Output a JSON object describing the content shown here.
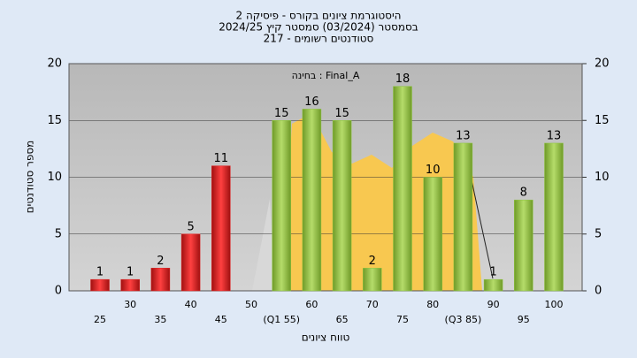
{
  "chart_data": {
    "type": "bar",
    "title": "היסטוגרמת ציונים בקורס - פיסיקה 2",
    "subtitle": "בסמסטר  (03/2024)  סמסטר קיץ  2024/25",
    "subtitle2": "סטודנטים רשומים - 217",
    "annotation": "בחינה : Final_A",
    "ylabel": "מספר סטודנטים",
    "xlabel": "טווח ציונים",
    "categories": [
      "25",
      "30",
      "35",
      "40",
      "45",
      "50",
      "(Q1 55)",
      "60",
      "65",
      "70",
      "75",
      "80",
      "(Q3 85)",
      "90",
      "95",
      "100"
    ],
    "values": [
      1,
      1,
      2,
      5,
      11,
      null,
      15,
      16,
      15,
      2,
      18,
      10,
      13,
      1,
      8,
      13
    ],
    "colors": [
      "#e02020",
      "#e02020",
      "#e02020",
      "#e02020",
      "#e02020",
      "#e02020",
      "#8dc63f",
      "#8dc63f",
      "#8dc63f",
      "#8dc63f",
      "#8dc63f",
      "#8dc63f",
      "#8dc63f",
      "#8dc63f",
      "#8dc63f",
      "#8dc63f"
    ],
    "ylim": [
      0,
      20
    ],
    "yticks": [
      0,
      5,
      10,
      15,
      20
    ],
    "y2lim": [
      0,
      20
    ],
    "y2ticks": [
      0,
      5,
      10,
      15,
      20
    ],
    "grid": true
  }
}
